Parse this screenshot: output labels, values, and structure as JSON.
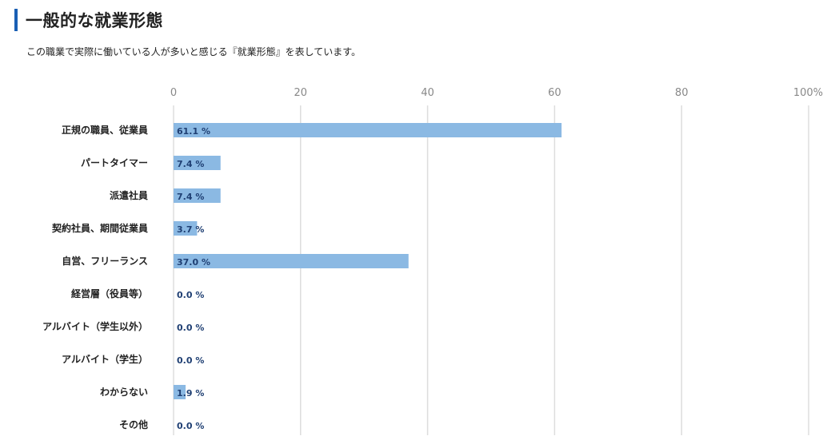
{
  "page": {
    "title": "一般的な就業形態",
    "description": "この職業で実際に働いている人が多いと感じる『就業形態』を表しています。"
  },
  "colors": {
    "accent": "#1a5fb4",
    "bar": "#8bb9e3",
    "value_text": "#1f3f73",
    "grid": "#dddddd"
  },
  "chart_data": {
    "type": "bar",
    "orientation": "horizontal",
    "title": "",
    "xlabel": "",
    "ylabel": "",
    "xlim": [
      0,
      100
    ],
    "grid": true,
    "x_ticks": [
      0,
      20,
      40,
      60,
      80,
      100
    ],
    "x_tick_labels": [
      "0",
      "20",
      "40",
      "60",
      "80",
      "100%"
    ],
    "categories": [
      "正規の職員、従業員",
      "パートタイマー",
      "派遣社員",
      "契約社員、期間従業員",
      "自営、フリーランス",
      "経営層（役員等）",
      "アルバイト（学生以外）",
      "アルバイト（学生）",
      "わからない",
      "その他"
    ],
    "values": [
      61.1,
      7.4,
      7.4,
      3.7,
      37.0,
      0.0,
      0.0,
      0.0,
      1.9,
      0.0
    ],
    "value_labels": [
      "61.1 %",
      "7.4 %",
      "7.4 %",
      "3.7 %",
      "37.0 %",
      "0.0 %",
      "0.0 %",
      "0.0 %",
      "1.9 %",
      "0.0 %"
    ]
  }
}
